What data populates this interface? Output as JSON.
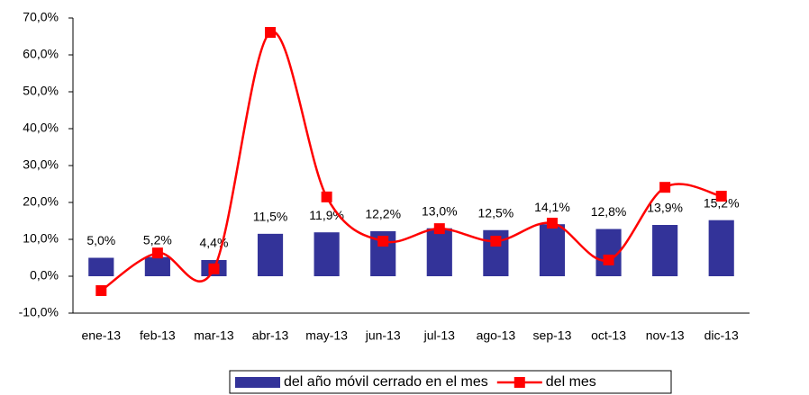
{
  "chart_data": {
    "type": "bar",
    "categories": [
      "ene-13",
      "feb-13",
      "mar-13",
      "abr-13",
      "may-13",
      "jun-13",
      "jul-13",
      "ago-13",
      "sep-13",
      "oct-13",
      "nov-13",
      "dic-13"
    ],
    "series": [
      {
        "name": "del año móvil cerrado en el mes",
        "type": "bar",
        "color": "#333399",
        "values": [
          5.0,
          5.2,
          4.4,
          11.5,
          11.9,
          12.2,
          13.0,
          12.5,
          14.1,
          12.8,
          13.9,
          15.2
        ],
        "value_labels": [
          "5,0%",
          "5,2%",
          "4,4%",
          "11,5%",
          "11,9%",
          "12,2%",
          "13,0%",
          "12,5%",
          "14,1%",
          "12,8%",
          "13,9%",
          "15,2%"
        ]
      },
      {
        "name": "del mes",
        "type": "line",
        "color": "#ff0000",
        "values": [
          -3.9,
          6.3,
          2.0,
          66.1,
          21.5,
          9.5,
          12.9,
          9.5,
          14.4,
          4.4,
          24.1,
          21.7
        ]
      }
    ],
    "ylim": [
      -10,
      70
    ],
    "yticks": [
      {
        "value": -10,
        "label": "-10,0%"
      },
      {
        "value": 0,
        "label": "0,0%"
      },
      {
        "value": 10,
        "label": "10,0%"
      },
      {
        "value": 20,
        "label": "20,0%"
      },
      {
        "value": 30,
        "label": "30,0%"
      },
      {
        "value": 40,
        "label": "40,0%"
      },
      {
        "value": 50,
        "label": "50,0%"
      },
      {
        "value": 60,
        "label": "60,0%"
      },
      {
        "value": 70,
        "label": "70,0%"
      }
    ],
    "legend": "bottom"
  }
}
